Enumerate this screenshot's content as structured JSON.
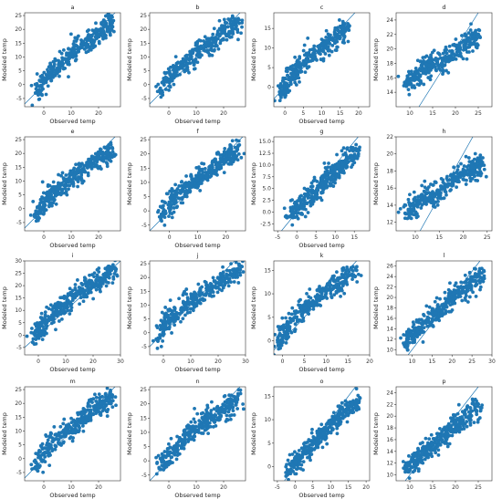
{
  "chart_data": [
    {
      "type": "scatter",
      "title": "a",
      "xlabel": "Observed temp",
      "ylabel": "Modeled temp",
      "xlim": [
        -7,
        28
      ],
      "ylim": [
        -8,
        26
      ],
      "xticks": [
        0,
        10,
        20
      ],
      "yticks": [
        -5,
        0,
        5,
        10,
        15,
        20,
        25
      ],
      "yticklabels": [
        "-5",
        "0",
        "5",
        "10",
        "15",
        "20",
        "25"
      ],
      "x": [
        -3,
        0,
        2,
        5,
        8,
        11,
        14,
        17,
        20,
        23,
        25
      ],
      "y": [
        -3,
        2,
        4,
        6,
        9,
        12,
        14,
        16,
        18,
        21,
        23
      ]
    },
    {
      "type": "scatter",
      "title": "b",
      "xlabel": "Observed temp",
      "ylabel": "Modeled temp",
      "xlim": [
        -7,
        28
      ],
      "ylim": [
        -8,
        26
      ],
      "xticks": [
        0,
        10,
        20
      ],
      "yticks": [
        -5,
        0,
        5,
        10,
        15,
        20,
        25
      ],
      "yticklabels": [
        "-5",
        "0",
        "5",
        "10",
        "15",
        "20",
        "25"
      ],
      "x": [
        -3,
        0,
        2,
        5,
        8,
        11,
        14,
        17,
        20,
        23,
        25
      ],
      "y": [
        -3,
        2,
        5,
        7,
        10,
        12,
        14,
        17,
        19,
        21,
        23
      ]
    },
    {
      "type": "scatter",
      "title": "c",
      "xlabel": "Observed temp",
      "ylabel": "Modeled temp",
      "xlim": [
        -3,
        23
      ],
      "ylim": [
        -5,
        19
      ],
      "xticks": [
        0,
        5,
        10,
        15,
        20
      ],
      "yticks": [
        0,
        5,
        10,
        15
      ],
      "yticklabels": [
        "0",
        "5",
        "10",
        "15"
      ],
      "x": [
        -1,
        0,
        1,
        3,
        5,
        7,
        9,
        11,
        13,
        15,
        17
      ],
      "y": [
        -2,
        0,
        2,
        4,
        6,
        8,
        9,
        11,
        12,
        14,
        15
      ]
    },
    {
      "type": "scatter",
      "title": "d",
      "xlabel": "",
      "ylabel": "Modeled temp",
      "xlim": [
        7,
        28
      ],
      "ylim": [
        12,
        25
      ],
      "xticks": [
        10,
        15,
        20,
        25
      ],
      "yticks": [
        14,
        16,
        18,
        20,
        22,
        24
      ],
      "yticklabels": [
        "14",
        "16",
        "18",
        "20",
        "22",
        "24"
      ],
      "x": [
        9,
        11,
        13,
        15,
        17,
        19,
        21,
        23,
        25
      ],
      "y": [
        15,
        16,
        17,
        18,
        18,
        19,
        20,
        21,
        22
      ]
    },
    {
      "type": "scatter",
      "title": "e",
      "xlabel": "Observed temp",
      "ylabel": "Modeled temp",
      "xlim": [
        -7,
        28
      ],
      "ylim": [
        -8,
        26
      ],
      "xticks": [
        0,
        10,
        20
      ],
      "yticks": [
        -5,
        0,
        5,
        10,
        15,
        20,
        25
      ],
      "yticklabels": [
        "-5",
        "0",
        "5",
        "10",
        "15",
        "20",
        "25"
      ],
      "x": [
        -3,
        0,
        2,
        5,
        8,
        11,
        14,
        17,
        20,
        23,
        25
      ],
      "y": [
        -3,
        2,
        5,
        7,
        9,
        12,
        14,
        16,
        18,
        20,
        22
      ]
    },
    {
      "type": "scatter",
      "title": "f",
      "xlabel": "Observed temp",
      "ylabel": "Modeled temp",
      "xlim": [
        -7,
        27
      ],
      "ylim": [
        -7,
        26
      ],
      "xticks": [
        0,
        10,
        20
      ],
      "yticks": [
        -5,
        0,
        5,
        10,
        15,
        20,
        25
      ],
      "yticklabels": [
        "-5",
        "0",
        "5",
        "10",
        "15",
        "20",
        "25"
      ],
      "x": [
        -3,
        0,
        2,
        5,
        8,
        11,
        14,
        17,
        20,
        22,
        24
      ],
      "y": [
        -3,
        2,
        5,
        7,
        10,
        12,
        14,
        16,
        18,
        20,
        22
      ]
    },
    {
      "type": "scatter",
      "title": "g",
      "xlabel": "Observed temp",
      "ylabel": "Modeled temp",
      "xlim": [
        -6,
        19
      ],
      "ylim": [
        -4,
        16
      ],
      "xticks": [
        -5,
        0,
        5,
        10,
        15
      ],
      "yticks": [
        -2.5,
        0,
        2.5,
        5,
        7.5,
        10,
        12.5,
        15
      ],
      "yticklabels": [
        "-2.5",
        "0.0",
        "2.5",
        "5.0",
        "7.5",
        "10.0",
        "12.5",
        "15.0"
      ],
      "x": [
        -2,
        0,
        2,
        4,
        6,
        8,
        10,
        12,
        14,
        16
      ],
      "y": [
        -1,
        1,
        2,
        4,
        6,
        7,
        9,
        10,
        12,
        13
      ]
    },
    {
      "type": "scatter",
      "title": "h",
      "xlabel": "",
      "ylabel": "Modeled temp",
      "xlim": [
        6,
        26
      ],
      "ylim": [
        11,
        22
      ],
      "xticks": [
        10,
        15,
        20,
        25
      ],
      "yticks": [
        12,
        14,
        16,
        18,
        20,
        22
      ],
      "yticklabels": [
        "12",
        "14",
        "16",
        "18",
        "20",
        "22"
      ],
      "x": [
        8,
        10,
        12,
        14,
        16,
        18,
        20,
        22,
        24
      ],
      "y": [
        13,
        14,
        15,
        15,
        16,
        17,
        18,
        18,
        19
      ]
    },
    {
      "type": "scatter",
      "title": "i",
      "xlabel": "Observed temp",
      "ylabel": "Modeled temp",
      "xlim": [
        -5,
        30
      ],
      "ylim": [
        -8,
        30
      ],
      "xticks": [
        0,
        10,
        20,
        30
      ],
      "yticks": [
        -5,
        0,
        5,
        10,
        15,
        20,
        25,
        30
      ],
      "yticklabels": [
        "-5",
        "0",
        "5",
        "10",
        "15",
        "20",
        "25",
        "30"
      ],
      "x": [
        -2,
        0,
        2,
        5,
        8,
        11,
        14,
        17,
        20,
        23,
        26,
        28
      ],
      "y": [
        -3,
        2,
        5,
        8,
        11,
        13,
        16,
        18,
        21,
        23,
        25,
        27
      ]
    },
    {
      "type": "scatter",
      "title": "j",
      "xlabel": "Observed temp",
      "ylabel": "Modeled temp",
      "xlim": [
        -5,
        30
      ],
      "ylim": [
        -8,
        26
      ],
      "xticks": [
        0,
        10,
        20,
        30
      ],
      "yticks": [
        -5,
        0,
        5,
        10,
        15,
        20,
        25
      ],
      "yticklabels": [
        "-5",
        "0",
        "5",
        "10",
        "15",
        "20",
        "25"
      ],
      "x": [
        -2,
        0,
        2,
        5,
        8,
        11,
        14,
        17,
        20,
        23,
        26,
        28
      ],
      "y": [
        -3,
        2,
        5,
        7,
        10,
        12,
        14,
        16,
        18,
        20,
        22,
        23
      ]
    },
    {
      "type": "scatter",
      "title": "k",
      "xlabel": "Observed temp",
      "ylabel": "Modeled temp",
      "xlim": [
        -2,
        20
      ],
      "ylim": [
        -3,
        17
      ],
      "xticks": [
        0,
        5,
        10,
        15,
        20
      ],
      "yticks": [
        0,
        5,
        10,
        15
      ],
      "yticklabels": [
        "0",
        "5",
        "10",
        "15"
      ],
      "x": [
        -1,
        0,
        1,
        3,
        5,
        7,
        9,
        11,
        13,
        15,
        17
      ],
      "y": [
        -1,
        1,
        3,
        5,
        7,
        8,
        10,
        11,
        12,
        14,
        15
      ]
    },
    {
      "type": "scatter",
      "title": "l",
      "xlabel": "",
      "ylabel": "Modeled temp",
      "xlim": [
        6,
        30
      ],
      "ylim": [
        9,
        27
      ],
      "xticks": [
        10,
        15,
        20,
        25,
        30
      ],
      "yticks": [
        10,
        12,
        14,
        16,
        18,
        20,
        22,
        24,
        26
      ],
      "yticklabels": [
        "10",
        "12",
        "14",
        "16",
        "18",
        "20",
        "22",
        "24",
        "26"
      ],
      "x": [
        8,
        10,
        12,
        14,
        16,
        18,
        20,
        22,
        24,
        26,
        28
      ],
      "y": [
        11,
        13,
        14,
        16,
        17,
        18,
        20,
        21,
        22,
        23,
        25
      ]
    },
    {
      "type": "scatter",
      "title": "m",
      "xlabel": "Observed temp",
      "ylabel": "Modeled temp",
      "xlim": [
        -7,
        28
      ],
      "ylim": [
        -8,
        26
      ],
      "xticks": [
        0,
        10,
        20
      ],
      "yticks": [
        -5,
        0,
        5,
        10,
        15,
        20,
        25
      ],
      "yticklabels": [
        "-5",
        "0",
        "5",
        "10",
        "15",
        "20",
        "25"
      ],
      "x": [
        -3,
        0,
        2,
        5,
        8,
        11,
        14,
        17,
        20,
        23,
        25
      ],
      "y": [
        -3,
        2,
        5,
        7,
        10,
        12,
        14,
        17,
        19,
        21,
        23
      ]
    },
    {
      "type": "scatter",
      "title": "n",
      "xlabel": "Observed temp",
      "ylabel": "Modeled temp",
      "xlim": [
        -7,
        28
      ],
      "ylim": [
        -7,
        26
      ],
      "xticks": [
        0,
        10,
        20
      ],
      "yticks": [
        -5,
        0,
        5,
        10,
        15,
        20,
        25
      ],
      "yticklabels": [
        "-5",
        "0",
        "5",
        "10",
        "15",
        "20",
        "25"
      ],
      "x": [
        -3,
        0,
        2,
        5,
        8,
        11,
        14,
        17,
        20,
        23,
        25
      ],
      "y": [
        -3,
        2,
        5,
        7,
        10,
        12,
        14,
        16,
        18,
        20,
        22
      ]
    },
    {
      "type": "scatter",
      "title": "o",
      "xlabel": "Observed temp",
      "ylabel": "Modeled temp",
      "xlim": [
        -6,
        21
      ],
      "ylim": [
        -3,
        17
      ],
      "xticks": [
        -5,
        0,
        5,
        10,
        15,
        20
      ],
      "yticks": [
        0,
        5,
        10,
        15
      ],
      "yticklabels": [
        "0",
        "5",
        "10",
        "15"
      ],
      "x": [
        -2,
        0,
        2,
        4,
        6,
        8,
        10,
        12,
        14,
        16,
        18
      ],
      "y": [
        -1,
        1,
        2,
        4,
        6,
        7,
        9,
        10,
        12,
        13,
        14
      ]
    },
    {
      "type": "scatter",
      "title": "p",
      "xlabel": "",
      "ylabel": "Modeled temp",
      "xlim": [
        7,
        28
      ],
      "ylim": [
        9,
        25
      ],
      "xticks": [
        10,
        15,
        20,
        25
      ],
      "yticks": [
        10,
        12,
        14,
        16,
        18,
        20,
        22,
        24
      ],
      "yticklabels": [
        "10",
        "12",
        "14",
        "16",
        "18",
        "20",
        "22",
        "24"
      ],
      "x": [
        9,
        11,
        13,
        15,
        17,
        19,
        21,
        23,
        25
      ],
      "y": [
        11,
        12,
        14,
        15,
        16,
        18,
        19,
        20,
        22
      ]
    }
  ]
}
